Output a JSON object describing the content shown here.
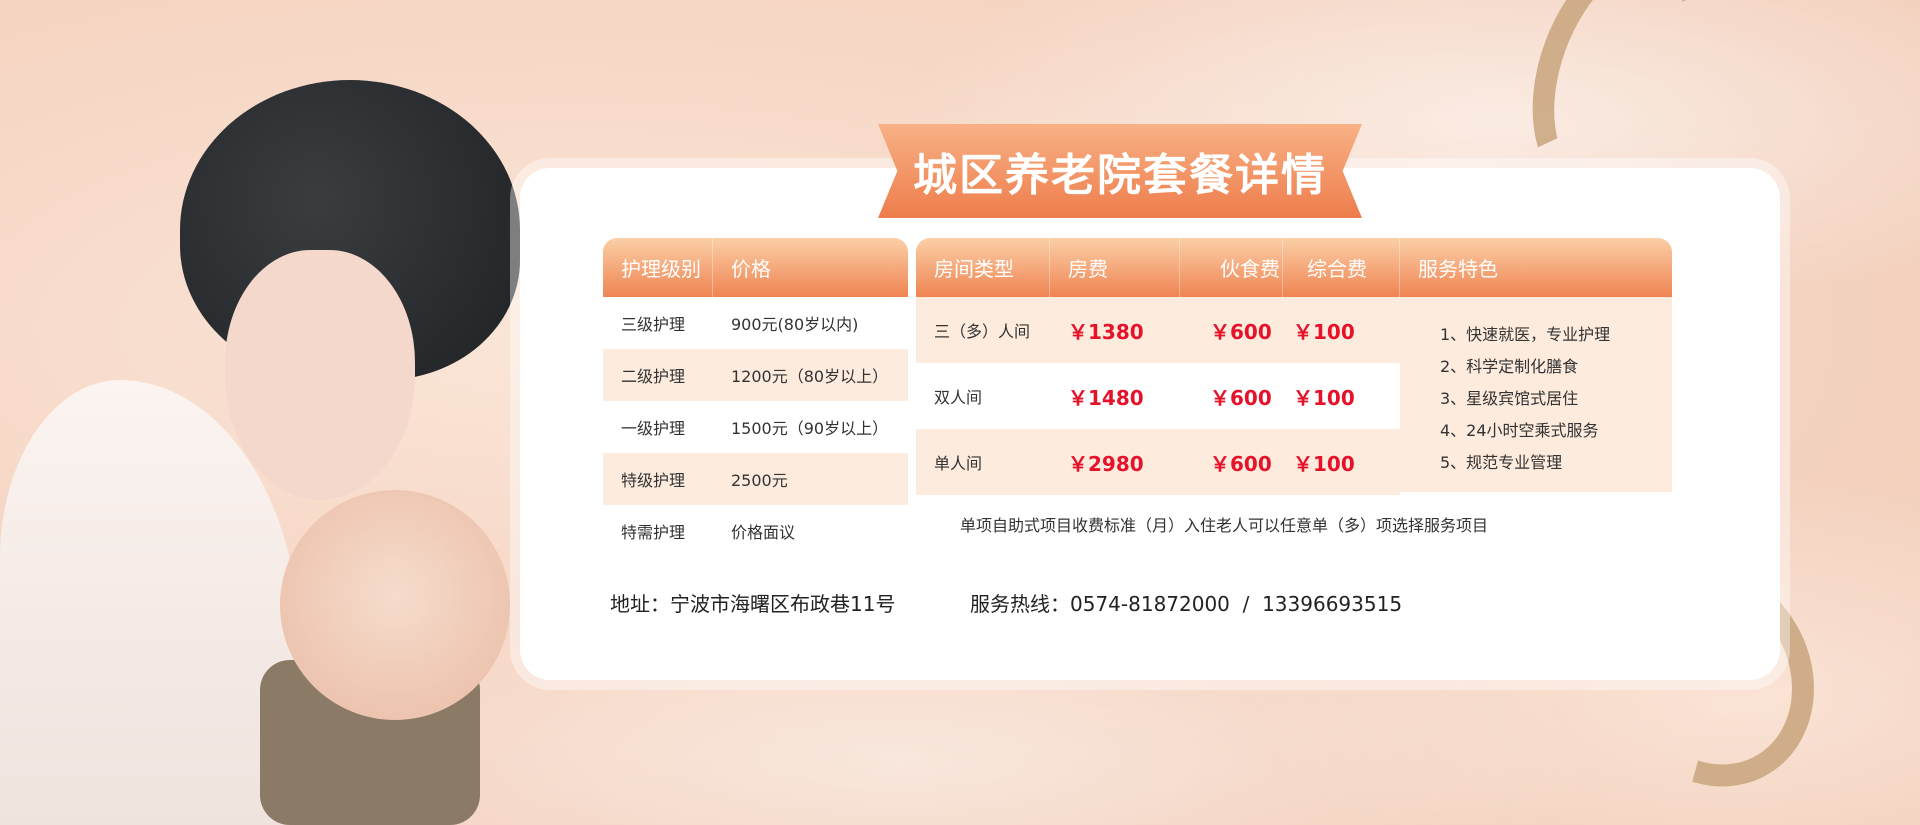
{
  "title": "城区养老院套餐详情",
  "care_table": {
    "headers": [
      "护理级别",
      "价格"
    ],
    "rows": [
      [
        "三级护理",
        "900元(80岁以内)"
      ],
      [
        "二级护理",
        "1200元（80岁以上）"
      ],
      [
        "一级护理",
        "1500元（90岁以上）"
      ],
      [
        "特级护理",
        "2500元"
      ],
      [
        "特需护理",
        "价格面议"
      ]
    ]
  },
  "room_table": {
    "headers": [
      "房间类型",
      "房费",
      "伙食费",
      "综合费",
      "服务特色"
    ],
    "rows": [
      [
        "三（多）人间",
        "￥1380",
        "￥600",
        "￥100"
      ],
      [
        "双人间",
        "￥1480",
        "￥600",
        "￥100"
      ],
      [
        "单人间",
        "￥2980",
        "￥600",
        "￥100"
      ]
    ],
    "features": [
      "1、快速就医，专业护理",
      "2、科学定制化膳食",
      "3、星级宾馆式居住",
      "4、24小时空乘式服务",
      "5、规范专业管理"
    ],
    "note": "单项自助式项目收费标准（月）入住老人可以任意单（多）项选择服务项目"
  },
  "footer": {
    "address": "地址：宁波市海曙区布政巷11号",
    "hotline": "服务热线：0574-81872000  /  13396693515"
  },
  "colors": {
    "accent": "#ef8452",
    "price": "#e5122a"
  }
}
